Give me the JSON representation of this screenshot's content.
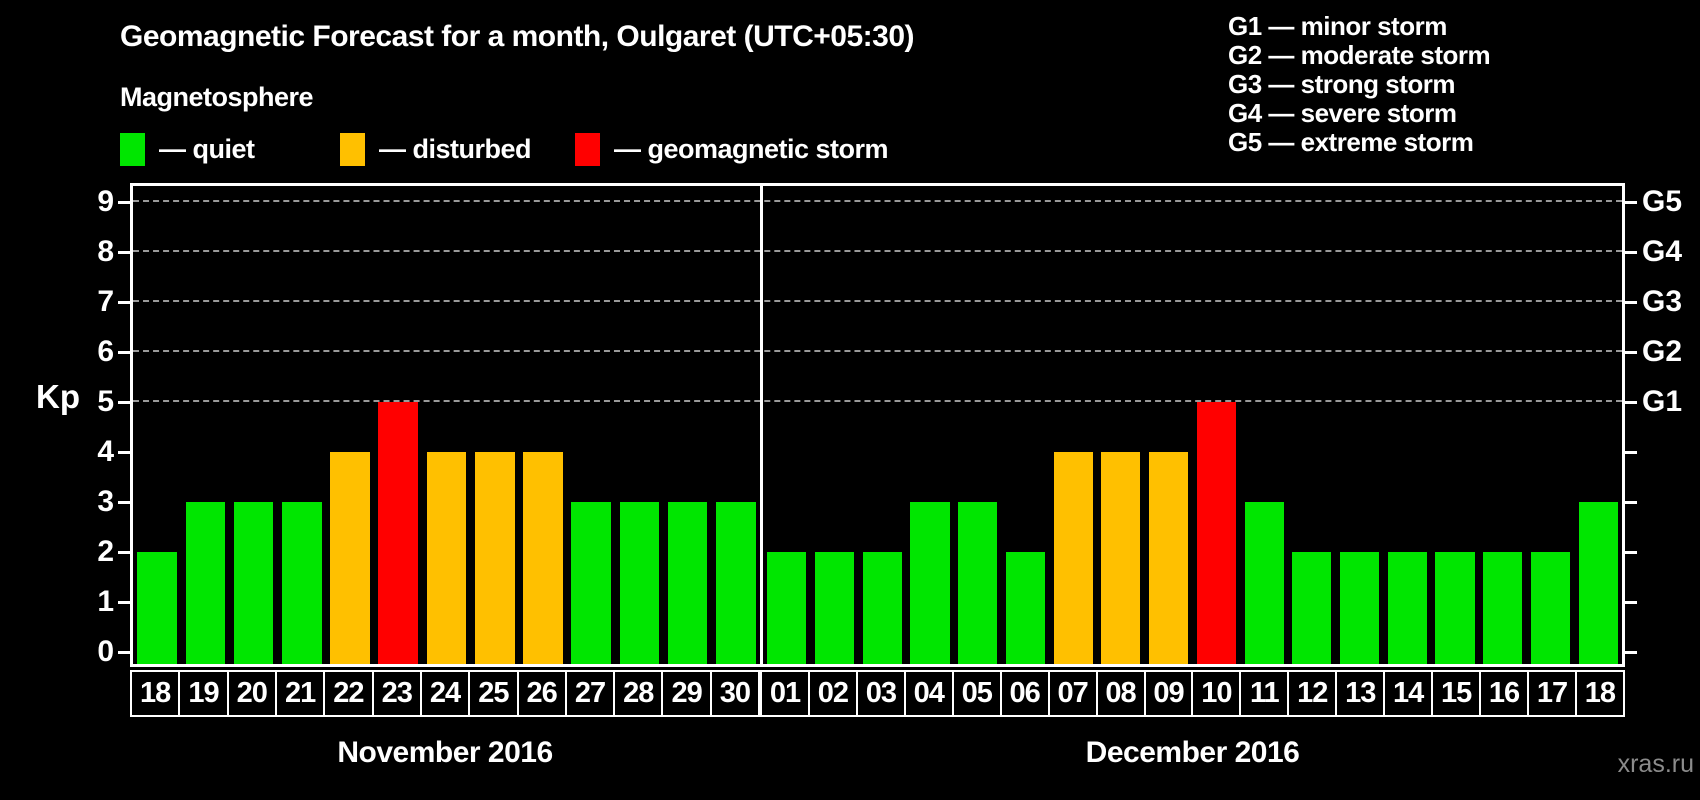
{
  "header": {
    "title": "Geomagnetic Forecast for a month, Oulgaret (UTC+05:30)",
    "subtitle": "Magnetosphere"
  },
  "legend": {
    "quiet_label": "— quiet",
    "disturbed_label": "— disturbed",
    "storm_label": "— geomagnetic storm"
  },
  "g_legend": [
    "G1 — minor storm",
    "G2 — moderate storm",
    "G3 — strong storm",
    "G4 — severe storm",
    "G5 — extreme storm"
  ],
  "watermark": "xras.ru",
  "chart_data": {
    "type": "bar",
    "title": "Geomagnetic Forecast for a month, Oulgaret (UTC+05:30)",
    "ylabel": "Kp",
    "ylim": [
      0,
      9
    ],
    "yticks": [
      0,
      1,
      2,
      3,
      4,
      5,
      6,
      7,
      8,
      9
    ],
    "grid_dashed_at": [
      5,
      6,
      7,
      8,
      9
    ],
    "right_axis_ticks": [
      {
        "kp": 5,
        "label": "G1"
      },
      {
        "kp": 6,
        "label": "G2"
      },
      {
        "kp": 7,
        "label": "G3"
      },
      {
        "kp": 8,
        "label": "G4"
      },
      {
        "kp": 9,
        "label": "G5"
      }
    ],
    "colors": {
      "quiet": "#00e600",
      "disturbed": "#ffc000",
      "storm": "#ff0000",
      "background": "#000000",
      "axis": "#ffffff",
      "grid": "#9a9a9a"
    },
    "panels": [
      {
        "label": "November 2016",
        "days": [
          "18",
          "19",
          "20",
          "21",
          "22",
          "23",
          "24",
          "25",
          "26",
          "27",
          "28",
          "29",
          "30"
        ],
        "values": [
          2,
          3,
          3,
          3,
          4,
          5,
          4,
          4,
          4,
          3,
          3,
          3,
          3
        ],
        "status": [
          "quiet",
          "quiet",
          "quiet",
          "quiet",
          "disturbed",
          "storm",
          "disturbed",
          "disturbed",
          "disturbed",
          "quiet",
          "quiet",
          "quiet",
          "quiet"
        ]
      },
      {
        "label": "December 2016",
        "days": [
          "01",
          "02",
          "03",
          "04",
          "05",
          "06",
          "07",
          "08",
          "09",
          "10",
          "11",
          "12",
          "13",
          "14",
          "15",
          "16",
          "17",
          "18"
        ],
        "values": [
          2,
          2,
          2,
          3,
          3,
          2,
          4,
          4,
          4,
          5,
          3,
          2,
          2,
          2,
          2,
          2,
          2,
          3
        ],
        "status": [
          "quiet",
          "quiet",
          "quiet",
          "quiet",
          "quiet",
          "quiet",
          "disturbed",
          "disturbed",
          "disturbed",
          "storm",
          "quiet",
          "quiet",
          "quiet",
          "quiet",
          "quiet",
          "quiet",
          "quiet",
          "quiet"
        ]
      }
    ]
  }
}
